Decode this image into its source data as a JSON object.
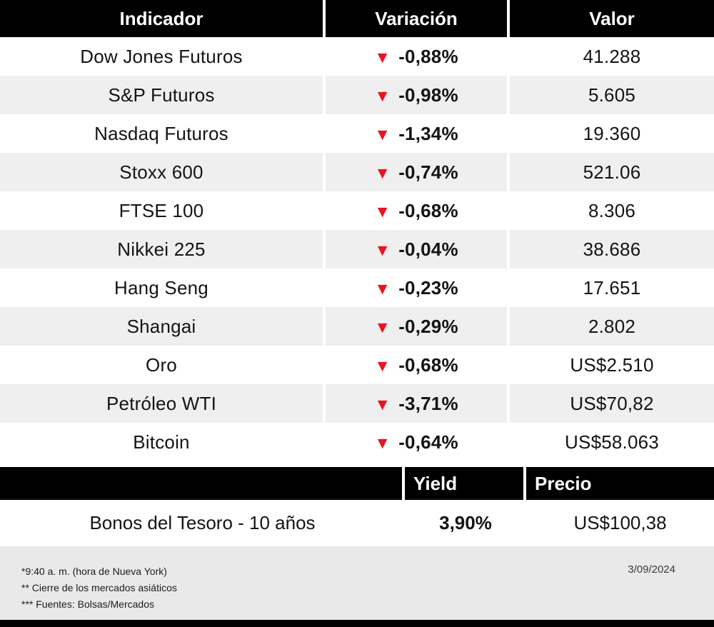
{
  "chart_data": {
    "type": "table",
    "columns": [
      "Indicador",
      "Variación",
      "Valor"
    ],
    "rows": [
      {
        "indicator": "Dow Jones Futuros",
        "direction": "down",
        "variation": "-0,88%",
        "value": "41.288"
      },
      {
        "indicator": "S&P Futuros",
        "direction": "down",
        "variation": "-0,98%",
        "value": "5.605"
      },
      {
        "indicator": "Nasdaq Futuros",
        "direction": "down",
        "variation": "-1,34%",
        "value": "19.360"
      },
      {
        "indicator": "Stoxx 600",
        "direction": "down",
        "variation": "-0,74%",
        "value": "521.06"
      },
      {
        "indicator": "FTSE 100",
        "direction": "down",
        "variation": "-0,68%",
        "value": "8.306"
      },
      {
        "indicator": "Nikkei 225",
        "direction": "down",
        "variation": "-0,04%",
        "value": "38.686"
      },
      {
        "indicator": "Hang Seng",
        "direction": "down",
        "variation": "-0,23%",
        "value": "17.651"
      },
      {
        "indicator": "Shangai",
        "direction": "down",
        "variation": "-0,29%",
        "value": "2.802"
      },
      {
        "indicator": "Oro",
        "direction": "down",
        "variation": "-0,68%",
        "value": "US$2.510"
      },
      {
        "indicator": "Petróleo WTI",
        "direction": "down",
        "variation": "-3,71%",
        "value": "US$70,82"
      },
      {
        "indicator": "Bitcoin",
        "direction": "down",
        "variation": "-0,64%",
        "value": "US$58.063"
      }
    ],
    "bond_table": {
      "columns": [
        "Yield",
        "Precio"
      ],
      "row": {
        "name": "Bonos del Tesoro - 10 años",
        "yield": "3,90%",
        "price": "US$100,38"
      }
    },
    "footnotes": [
      "*9:40 a. m. (hora de Nueva York)",
      "** Cierre de los mercados asiáticos",
      "*** Fuentes: Bolsas/Mercados"
    ],
    "date": "3/09/2024",
    "layout": {
      "grid": false,
      "legend": "none"
    }
  },
  "icons": {
    "down_triangle": "▼"
  },
  "colors": {
    "negative_red": "#e8141e",
    "header_black": "#000000",
    "row_alt_gray": "#efefef",
    "footer_gray": "#e9e9e9"
  }
}
